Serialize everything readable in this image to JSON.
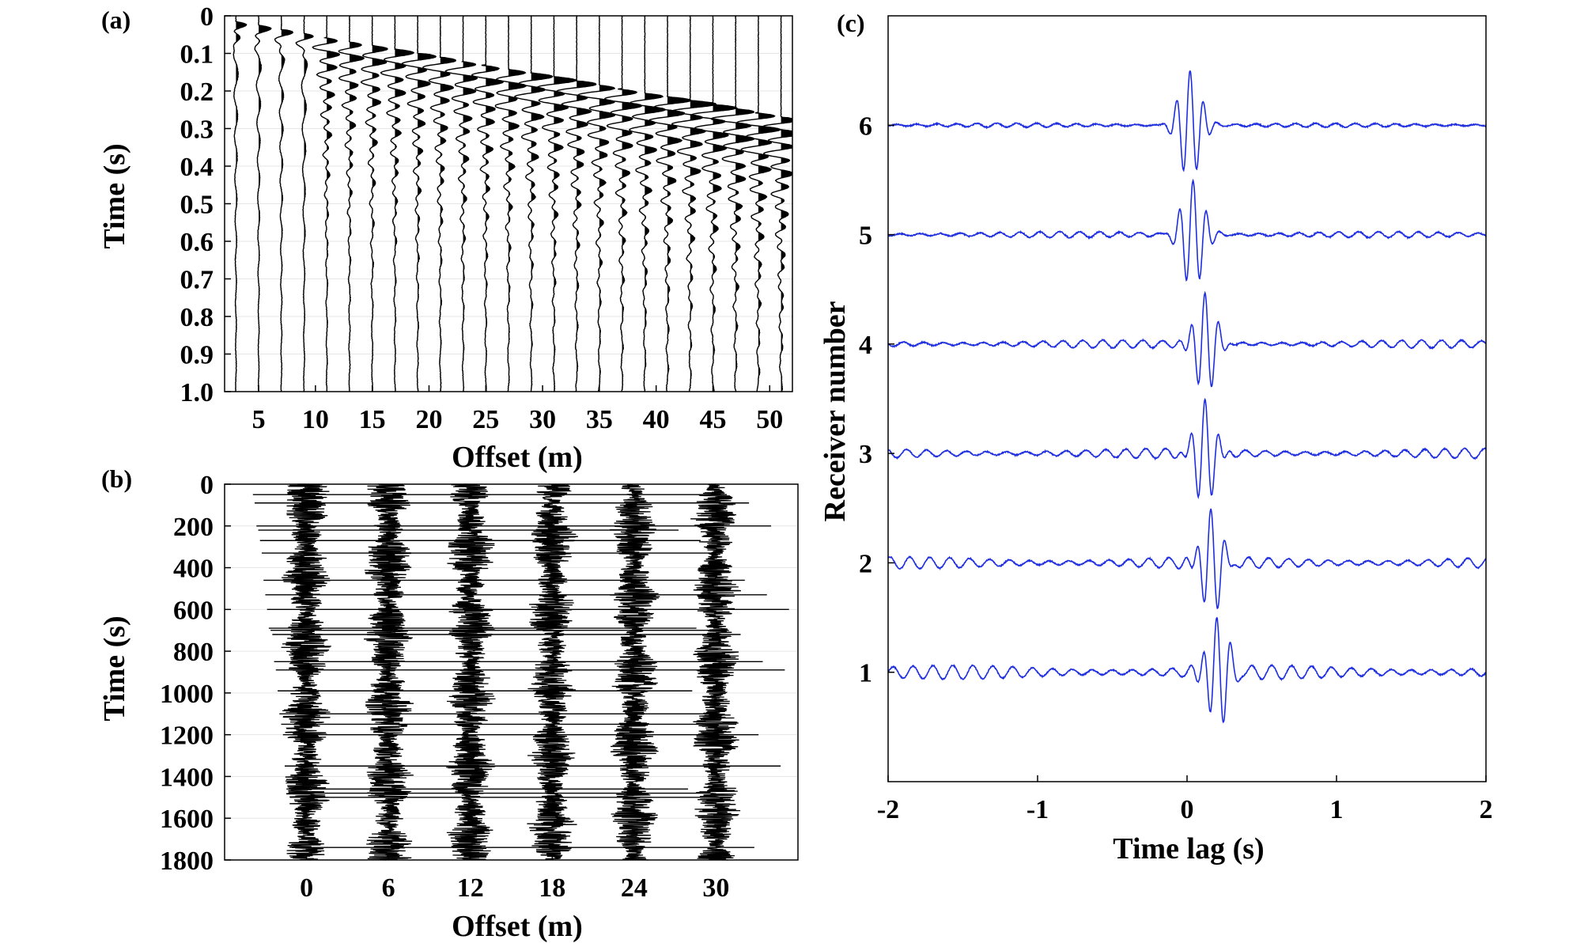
{
  "panels": {
    "a": {
      "letter": "(a)"
    },
    "b": {
      "letter": "(b)"
    },
    "c": {
      "letter": "(c)"
    }
  },
  "colors": {
    "trace_a": "#000000",
    "trace_b": "#000000",
    "trace_c": "#1f2fe0",
    "grid": "#e6e6e6",
    "axis": "#000000"
  },
  "chart_data": [
    {
      "panel": "a",
      "type": "line",
      "title": "",
      "xlabel": "Offset (m)",
      "ylabel": "Time (s)",
      "x_ticks": [
        "5",
        "10",
        "15",
        "20",
        "25",
        "30",
        "35",
        "40",
        "45",
        "50"
      ],
      "x_tick_values": [
        5,
        10,
        15,
        20,
        25,
        30,
        35,
        40,
        45,
        50
      ],
      "y_ticks": [
        "0",
        "0.1",
        "0.2",
        "0.3",
        "0.4",
        "0.5",
        "0.6",
        "0.7",
        "0.8",
        "0.9",
        "1.0"
      ],
      "y_tick_values": [
        0,
        0.1,
        0.2,
        0.3,
        0.4,
        0.5,
        0.6,
        0.7,
        0.8,
        0.9,
        1.0
      ],
      "xlim": [
        2,
        52
      ],
      "ylim": [
        0,
        1.0
      ],
      "y_reversed": true,
      "grid": true,
      "trace_offsets": [
        3,
        5,
        7,
        9,
        11,
        13,
        15,
        17,
        19,
        21,
        23,
        25,
        27,
        29,
        31,
        33,
        35,
        37,
        39,
        41,
        43,
        45,
        47,
        49,
        51
      ],
      "first_arrival_velocity_m_per_s": 190,
      "description_series": "wiggle traces with shaded positive lobes; first arrival time increases with offset"
    },
    {
      "panel": "b",
      "type": "line",
      "title": "",
      "xlabel": "Offset (m)",
      "ylabel": "Time (s)",
      "x_ticks": [
        "0",
        "6",
        "12",
        "18",
        "24",
        "30"
      ],
      "x_tick_values": [
        0,
        6,
        12,
        18,
        24,
        30
      ],
      "y_ticks": [
        "0",
        "200",
        "400",
        "600",
        "800",
        "1000",
        "1200",
        "1400",
        "1600",
        "1800"
      ],
      "y_tick_values": [
        0,
        200,
        400,
        600,
        800,
        1000,
        1200,
        1400,
        1600,
        1800
      ],
      "xlim": [
        -6,
        36
      ],
      "ylim": [
        0,
        1800
      ],
      "y_reversed": true,
      "grid": true,
      "trace_offsets": [
        0,
        6,
        12,
        18,
        24,
        30
      ],
      "spike_times": [
        50,
        90,
        200,
        220,
        270,
        330,
        460,
        530,
        600,
        690,
        700,
        720,
        850,
        890,
        990,
        1100,
        1150,
        1200,
        1350,
        1460,
        1480,
        1500,
        1740
      ]
    },
    {
      "panel": "c",
      "type": "line",
      "title": "",
      "xlabel": "Time lag (s)",
      "ylabel": "Receiver number",
      "x_ticks": [
        "-2",
        "-1",
        "0",
        "1",
        "2"
      ],
      "x_tick_values": [
        -2,
        -1,
        0,
        1,
        2
      ],
      "y_ticks": [
        "1",
        "2",
        "3",
        "4",
        "5",
        "6"
      ],
      "y_tick_values": [
        1,
        2,
        3,
        4,
        5,
        6
      ],
      "xlim": [
        -2,
        2
      ],
      "ylim": [
        0,
        7
      ],
      "grid": false,
      "series": [
        {
          "name": "Receiver 1",
          "baseline": 1,
          "peak_lag": 0.2,
          "peak_amplitude": 0.5
        },
        {
          "name": "Receiver 2",
          "baseline": 2,
          "peak_lag": 0.16,
          "peak_amplitude": 0.45
        },
        {
          "name": "Receiver 3",
          "baseline": 3,
          "peak_lag": 0.12,
          "peak_amplitude": 0.45
        },
        {
          "name": "Receiver 4",
          "baseline": 4,
          "peak_lag": 0.12,
          "peak_amplitude": 0.45
        },
        {
          "name": "Receiver 5",
          "baseline": 5,
          "peak_lag": 0.04,
          "peak_amplitude": 0.5
        },
        {
          "name": "Receiver 6",
          "baseline": 6,
          "peak_lag": 0.02,
          "peak_amplitude": 0.5
        }
      ]
    }
  ]
}
